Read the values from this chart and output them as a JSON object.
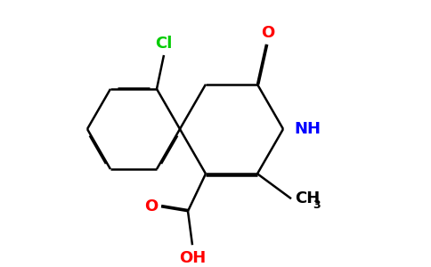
{
  "background_color": "#ffffff",
  "bond_color": "#000000",
  "cl_color": "#00cc00",
  "o_color": "#ff0000",
  "n_color": "#0000ff",
  "line_width": 1.8,
  "dbo": 0.012,
  "figsize": [
    4.84,
    3.0
  ],
  "dpi": 100,
  "xlim": [
    0,
    4.84
  ],
  "ylim": [
    0,
    3.0
  ]
}
